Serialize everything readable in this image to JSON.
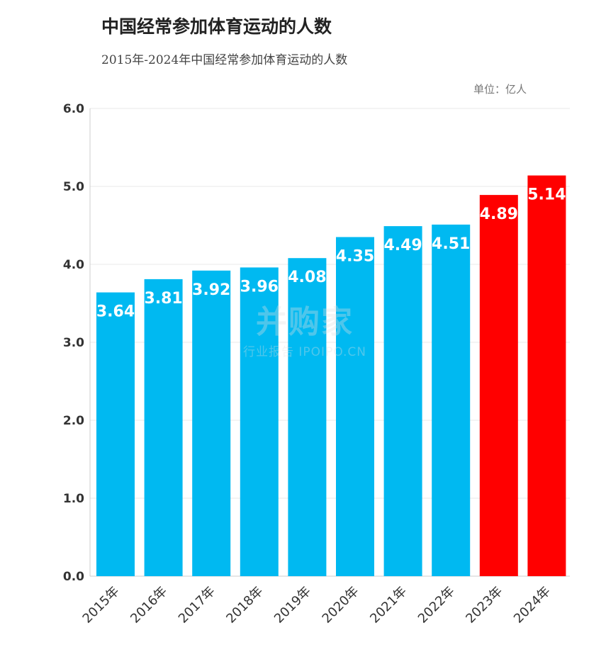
{
  "chart_data": {
    "type": "bar",
    "title": "中国经常参加体育运动的人数",
    "subtitle": "2015年-2024年中国经常参加体育运动的人数",
    "unit_label": "单位：亿人",
    "categories": [
      "2015年",
      "2016年",
      "2017年",
      "2018年",
      "2019年",
      "2020年",
      "2021年",
      "2022年",
      "2023年",
      "2024年"
    ],
    "values": [
      3.64,
      3.81,
      3.92,
      3.96,
      4.08,
      4.35,
      4.49,
      4.51,
      4.89,
      5.14
    ],
    "value_labels": [
      "3.64",
      "3.81",
      "3.92",
      "3.96",
      "4.08",
      "4.35",
      "4.49",
      "4.51",
      "4.89",
      "5.14"
    ],
    "bar_colors": [
      "#00B9F1",
      "#00B9F1",
      "#00B9F1",
      "#00B9F1",
      "#00B9F1",
      "#00B9F1",
      "#00B9F1",
      "#00B9F1",
      "#FF0000",
      "#FF0000"
    ],
    "ylim": [
      0,
      6
    ],
    "yticks": [
      "0.0",
      "1.0",
      "2.0",
      "3.0",
      "4.0",
      "5.0",
      "6.0"
    ],
    "grid": true,
    "xlabel": "",
    "ylabel": ""
  },
  "watermark": {
    "logo": "并购家",
    "text": "行业报告 IPOIPO.CN"
  }
}
